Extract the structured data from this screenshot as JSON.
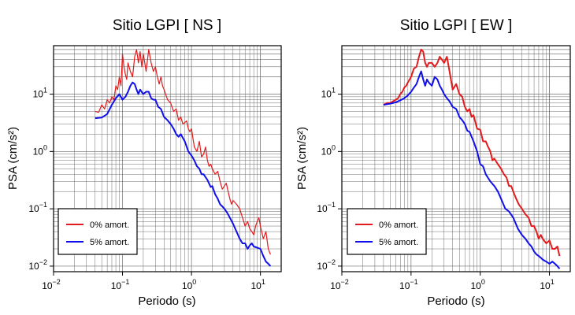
{
  "colors": {
    "undamped": "#e41a1c",
    "damped": "#1010ee",
    "grid": "#6e6e6e",
    "frame": "#000000"
  },
  "chart_data": [
    {
      "type": "line",
      "title": "Sitio LGPI [ NS ]",
      "xlabel": "Periodo (s)",
      "ylabel": "PSA (cm/s²)",
      "xscale": "log",
      "yscale": "log",
      "xlim": [
        0.01,
        20
      ],
      "ylim": [
        0.008,
        70
      ],
      "xticks": [
        {
          "v": 0.01,
          "m": "10",
          "e": "−2"
        },
        {
          "v": 0.1,
          "m": "10",
          "e": "−1"
        },
        {
          "v": 1,
          "m": "10",
          "e": "0"
        },
        {
          "v": 10,
          "m": "10",
          "e": "1"
        }
      ],
      "yticks": [
        {
          "v": 0.01,
          "t": "10",
          "e": "−2"
        },
        {
          "v": 0.1,
          "t": "10",
          "e": "−1"
        },
        {
          "v": 1,
          "t": "10",
          "e": "0"
        },
        {
          "v": 10,
          "t": "10",
          "e": "1"
        }
      ],
      "grid": true,
      "legend_position": "bottom-left",
      "series": [
        {
          "name": "0% amort.",
          "color": "undamped",
          "x": [
            0.04,
            0.045,
            0.05,
            0.055,
            0.06,
            0.065,
            0.07,
            0.075,
            0.08,
            0.085,
            0.09,
            0.095,
            0.1,
            0.105,
            0.11,
            0.115,
            0.12,
            0.13,
            0.14,
            0.15,
            0.16,
            0.17,
            0.18,
            0.19,
            0.2,
            0.21,
            0.22,
            0.24,
            0.26,
            0.28,
            0.3,
            0.32,
            0.34,
            0.36,
            0.38,
            0.4,
            0.45,
            0.5,
            0.55,
            0.6,
            0.65,
            0.7,
            0.75,
            0.8,
            0.85,
            0.9,
            0.95,
            1.0,
            1.1,
            1.2,
            1.3,
            1.4,
            1.5,
            1.6,
            1.7,
            1.8,
            1.9,
            2.0,
            2.2,
            2.4,
            2.6,
            2.8,
            3.0,
            3.2,
            3.4,
            3.6,
            3.8,
            4.0,
            4.5,
            5.0,
            5.5,
            6.0,
            6.5,
            7.0,
            7.5,
            8.0,
            8.5,
            9.0,
            9.5,
            10,
            11,
            12,
            13,
            14
          ],
          "y": [
            5,
            4.8,
            6.5,
            5.5,
            8,
            7,
            9,
            8,
            14,
            12,
            20,
            14,
            50,
            30,
            22,
            18,
            35,
            25,
            20,
            45,
            60,
            35,
            55,
            30,
            50,
            35,
            25,
            60,
            35,
            25,
            30,
            20,
            15,
            20,
            14,
            12,
            8,
            7,
            5,
            5.5,
            3.5,
            4,
            3,
            3.2,
            3.4,
            2.5,
            2.2,
            2.5,
            1.2,
            1.0,
            1.5,
            0.8,
            0.9,
            1.2,
            0.7,
            0.55,
            0.6,
            0.5,
            0.4,
            0.45,
            0.3,
            0.22,
            0.25,
            0.28,
            0.2,
            0.15,
            0.12,
            0.14,
            0.12,
            0.1,
            0.07,
            0.05,
            0.06,
            0.045,
            0.04,
            0.035,
            0.05,
            0.06,
            0.07,
            0.05,
            0.03,
            0.04,
            0.02,
            0.016
          ]
        },
        {
          "name": "5% amort.",
          "color": "damped",
          "x": [
            0.04,
            0.05,
            0.06,
            0.07,
            0.08,
            0.09,
            0.1,
            0.11,
            0.12,
            0.13,
            0.14,
            0.15,
            0.16,
            0.17,
            0.18,
            0.2,
            0.22,
            0.24,
            0.26,
            0.28,
            0.3,
            0.33,
            0.36,
            0.4,
            0.45,
            0.5,
            0.55,
            0.6,
            0.65,
            0.7,
            0.8,
            0.9,
            1.0,
            1.1,
            1.2,
            1.3,
            1.4,
            1.5,
            1.7,
            1.9,
            2.0,
            2.2,
            2.4,
            2.6,
            2.8,
            3.0,
            3.3,
            3.6,
            4.0,
            4.5,
            5.0,
            5.5,
            6.0,
            6.5,
            7.0,
            7.5,
            8.0,
            9.0,
            10,
            11,
            12,
            13,
            14
          ],
          "y": [
            3.8,
            3.9,
            4.5,
            6.5,
            8.5,
            10,
            8,
            9,
            11,
            14,
            16,
            15,
            12,
            10,
            12,
            10,
            11,
            11,
            8.5,
            8,
            8,
            6,
            5.5,
            4,
            3.5,
            3,
            2.5,
            2,
            1.8,
            2,
            1.5,
            1.0,
            0.85,
            0.7,
            0.55,
            0.5,
            0.4,
            0.4,
            0.32,
            0.24,
            0.25,
            0.18,
            0.15,
            0.12,
            0.11,
            0.1,
            0.085,
            0.07,
            0.055,
            0.04,
            0.03,
            0.025,
            0.025,
            0.02,
            0.023,
            0.025,
            0.022,
            0.021,
            0.02,
            0.015,
            0.012,
            0.011,
            0.01
          ]
        }
      ]
    },
    {
      "type": "line",
      "title": "Sitio LGPI [ EW ]",
      "xlabel": "Periodo (s)",
      "ylabel": "PSA (cm/s²)",
      "xscale": "log",
      "yscale": "log",
      "xlim": [
        0.01,
        20
      ],
      "ylim": [
        0.008,
        70
      ],
      "xticks": [
        {
          "v": 0.01,
          "m": "10",
          "e": "−2"
        },
        {
          "v": 0.1,
          "m": "10",
          "e": "−1"
        },
        {
          "v": 1,
          "m": "10",
          "e": "0"
        },
        {
          "v": 10,
          "m": "10",
          "e": "1"
        }
      ],
      "yticks": [
        {
          "v": 0.01,
          "t": "10",
          "e": "−2"
        },
        {
          "v": 0.1,
          "t": "10",
          "e": "−1"
        },
        {
          "v": 1,
          "t": "10",
          "e": "0"
        },
        {
          "v": 10,
          "t": "10",
          "e": "1"
        }
      ],
      "grid": true,
      "legend_position": "bottom-left",
      "series": [
        {
          "name": "0% amort.",
          "color": "undamped",
          "x": [
            0.04,
            0.045,
            0.05,
            0.055,
            0.06,
            0.065,
            0.07,
            0.075,
            0.08,
            0.085,
            0.09,
            0.1,
            0.11,
            0.12,
            0.13,
            0.14,
            0.15,
            0.16,
            0.17,
            0.18,
            0.2,
            0.22,
            0.24,
            0.26,
            0.28,
            0.3,
            0.33,
            0.36,
            0.4,
            0.45,
            0.5,
            0.55,
            0.6,
            0.65,
            0.7,
            0.75,
            0.8,
            0.9,
            1.0,
            1.1,
            1.2,
            1.3,
            1.4,
            1.5,
            1.6,
            1.8,
            2.0,
            2.2,
            2.4,
            2.6,
            2.8,
            3.0,
            3.3,
            3.6,
            4.0,
            4.5,
            5.0,
            5.5,
            6.0,
            6.5,
            7.0,
            7.5,
            8.0,
            9.0,
            10,
            11,
            12,
            13,
            14
          ],
          "y": [
            6.5,
            7,
            7,
            7.5,
            8,
            8.5,
            10,
            11,
            13,
            14,
            16,
            20,
            28,
            30,
            45,
            60,
            55,
            35,
            30,
            35,
            35,
            30,
            35,
            45,
            40,
            35,
            45,
            25,
            12,
            15,
            10,
            9,
            6,
            5,
            5.5,
            4,
            4.3,
            2.5,
            2.4,
            1.5,
            1.5,
            1.2,
            1.0,
            0.7,
            0.75,
            0.6,
            0.5,
            0.4,
            0.35,
            0.25,
            0.25,
            0.2,
            0.15,
            0.12,
            0.1,
            0.08,
            0.07,
            0.05,
            0.05,
            0.04,
            0.03,
            0.035,
            0.03,
            0.025,
            0.028,
            0.02,
            0.02,
            0.022,
            0.015
          ]
        },
        {
          "name": "5% amort.",
          "color": "damped",
          "x": [
            0.04,
            0.05,
            0.06,
            0.07,
            0.08,
            0.09,
            0.1,
            0.11,
            0.12,
            0.13,
            0.14,
            0.15,
            0.16,
            0.17,
            0.18,
            0.2,
            0.22,
            0.24,
            0.26,
            0.28,
            0.3,
            0.33,
            0.36,
            0.4,
            0.45,
            0.5,
            0.55,
            0.6,
            0.65,
            0.7,
            0.8,
            0.9,
            1.0,
            1.1,
            1.2,
            1.4,
            1.6,
            1.8,
            2.0,
            2.3,
            2.6,
            3.0,
            3.5,
            4.0,
            4.5,
            5.0,
            5.5,
            6.0,
            6.5,
            7.0,
            7.5,
            8.0,
            9.0,
            10,
            11,
            12,
            13,
            14
          ],
          "y": [
            6.5,
            6.8,
            7.2,
            7.8,
            8.5,
            9.5,
            11,
            13,
            15,
            20,
            25,
            18,
            14,
            18,
            16,
            14,
            20,
            18,
            14,
            12,
            10,
            8.5,
            7.5,
            6,
            5.5,
            4,
            3.5,
            3,
            2.3,
            2.2,
            1.5,
            1.0,
            0.6,
            0.55,
            0.4,
            0.3,
            0.25,
            0.2,
            0.15,
            0.1,
            0.09,
            0.07,
            0.045,
            0.035,
            0.03,
            0.025,
            0.022,
            0.018,
            0.016,
            0.015,
            0.014,
            0.013,
            0.012,
            0.011,
            0.012,
            0.011,
            0.01,
            0.009
          ]
        }
      ]
    }
  ]
}
